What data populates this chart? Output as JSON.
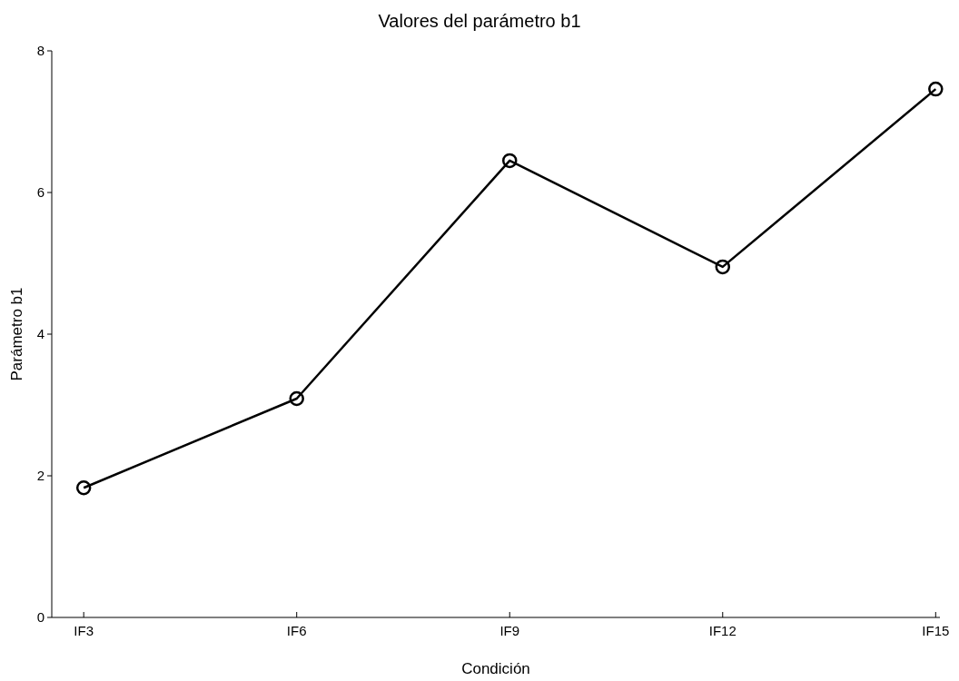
{
  "chart_data": {
    "type": "line",
    "title": "Valores del parámetro b1",
    "xlabel": "Condición",
    "ylabel": "Parámetro b1",
    "categories": [
      "IF3",
      "IF6",
      "IF9",
      "IF12",
      "IF15"
    ],
    "series": [
      {
        "color": "#000000",
        "values": [
          1.83,
          3.09,
          6.45,
          4.95,
          7.46
        ]
      }
    ],
    "ylim": [
      0,
      8
    ],
    "yticks": [
      0,
      2,
      4,
      6,
      8
    ],
    "marker": "circle",
    "line_style": "solid",
    "grid": false
  }
}
